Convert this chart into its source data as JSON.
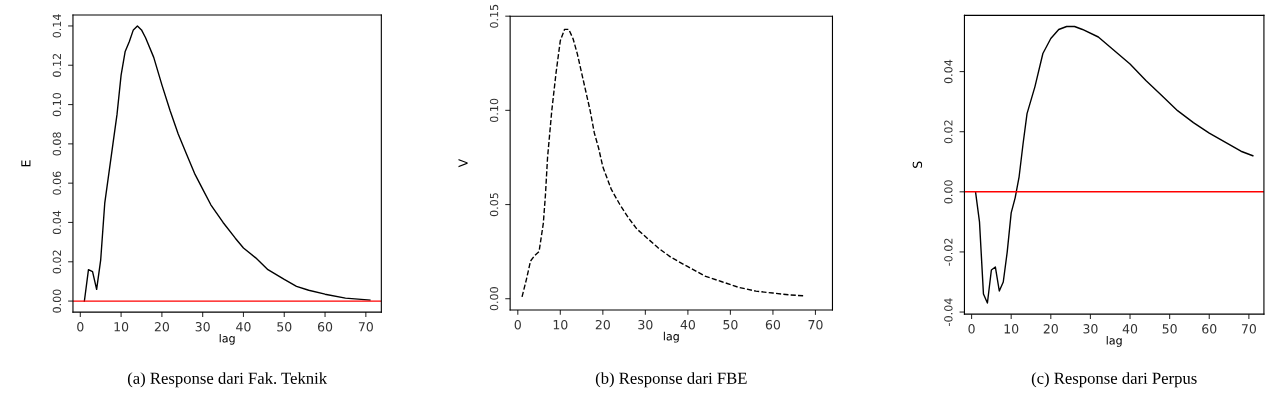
{
  "chart_data": [
    {
      "type": "line",
      "xlabel": "lag",
      "ylabel": "E",
      "xlim": [
        -1.8,
        73.8
      ],
      "ylim": [
        -0.0056,
        0.1456
      ],
      "xticks": [
        0,
        10,
        20,
        30,
        40,
        50,
        60,
        70
      ],
      "yticks": [
        {
          "value": 0,
          "label": "0.00"
        },
        {
          "value": 0.02,
          "label": "0.02"
        },
        {
          "value": 0.04,
          "label": "0.04"
        },
        {
          "value": 0.06,
          "label": "0.06"
        },
        {
          "value": 0.08,
          "label": "0.08"
        },
        {
          "value": 0.1,
          "label": "0.10"
        },
        {
          "value": 0.12,
          "label": "0.12"
        },
        {
          "value": 0.14,
          "label": "0.14"
        }
      ],
      "grid": false,
      "legend": false,
      "line_style": "solid",
      "ref_lines": [
        {
          "axis": "y",
          "value": 0,
          "color": "#ff0000"
        }
      ],
      "annotations": [
        "(a) Response dari Fak. Teknik"
      ],
      "series": [
        {
          "color": "#000000",
          "x": [
            1,
            2,
            3,
            4,
            5,
            6,
            7,
            8,
            9,
            10,
            11,
            12,
            13,
            14,
            15,
            16,
            18,
            20,
            22,
            24,
            26,
            28,
            30,
            32,
            35,
            38,
            40,
            43,
            46,
            50,
            53,
            56,
            60,
            65,
            71
          ],
          "values": [
            0,
            0.016,
            0.015,
            0.006,
            0.021,
            0.05,
            0.065,
            0.08,
            0.095,
            0.115,
            0.127,
            0.132,
            0.138,
            0.14,
            0.138,
            0.134,
            0.124,
            0.11,
            0.097,
            0.085,
            0.075,
            0.065,
            0.057,
            0.049,
            0.04,
            0.032,
            0.027,
            0.022,
            0.016,
            0.011,
            0.0075,
            0.0055,
            0.0035,
            0.0015,
            0.0005
          ]
        }
      ]
    },
    {
      "type": "line",
      "xlabel": "lag",
      "ylabel": "V",
      "xlim": [
        -1.8,
        74
      ],
      "ylim": [
        -0.006,
        0.15
      ],
      "xticks": [
        0,
        10,
        20,
        30,
        40,
        50,
        60,
        70
      ],
      "yticks": [
        {
          "value": 0,
          "label": "0.00"
        },
        {
          "value": 0.05,
          "label": "0.05"
        },
        {
          "value": 0.1,
          "label": "0.10"
        },
        {
          "value": 0.15,
          "label": "0.15"
        }
      ],
      "grid": false,
      "legend": false,
      "line_style": "dashed",
      "annotations": [
        "(b) Response dari FBE"
      ],
      "series": [
        {
          "color": "#000000",
          "x": [
            1,
            2,
            3,
            4,
            5,
            6,
            6.5,
            7,
            8,
            9,
            10,
            11,
            12,
            13,
            14,
            15,
            16,
            17,
            18,
            19,
            20,
            22,
            24,
            26,
            28,
            30,
            33,
            36,
            40,
            44,
            48,
            52,
            56,
            60,
            64,
            67.5
          ],
          "values": [
            0.001,
            0.01,
            0.02,
            0.023,
            0.025,
            0.04,
            0.055,
            0.075,
            0.1,
            0.12,
            0.137,
            0.143,
            0.143,
            0.138,
            0.13,
            0.12,
            0.11,
            0.1,
            0.088,
            0.08,
            0.07,
            0.058,
            0.05,
            0.043,
            0.037,
            0.033,
            0.027,
            0.022,
            0.017,
            0.012,
            0.009,
            0.006,
            0.004,
            0.003,
            0.002,
            0.0015
          ]
        }
      ]
    },
    {
      "type": "line",
      "xlabel": "lag",
      "ylabel": "S",
      "xlim": [
        -1.8,
        73.8
      ],
      "ylim": [
        -0.0407,
        0.0587
      ],
      "xticks": [
        0,
        10,
        20,
        30,
        40,
        50,
        60,
        70
      ],
      "yticks": [
        {
          "value": -0.04,
          "label": "-0.04"
        },
        {
          "value": -0.02,
          "label": "-0.02"
        },
        {
          "value": 0,
          "label": "0.00"
        },
        {
          "value": 0.02,
          "label": "0.02"
        },
        {
          "value": 0.04,
          "label": "0.04"
        }
      ],
      "grid": false,
      "legend": false,
      "line_style": "solid",
      "ref_lines": [
        {
          "axis": "y",
          "value": 0,
          "color": "#ff0000"
        }
      ],
      "annotations": [
        "(c) Response dari Perpus"
      ],
      "series": [
        {
          "color": "#000000",
          "x": [
            1,
            2,
            3,
            4,
            5,
            6,
            7,
            8,
            9,
            10,
            11,
            12,
            13,
            14,
            16,
            18,
            20,
            22,
            24,
            26,
            28,
            32,
            36,
            40,
            44,
            48,
            52,
            56,
            60,
            64,
            68,
            71
          ],
          "values": [
            0,
            -0.01,
            -0.034,
            -0.037,
            -0.026,
            -0.025,
            -0.033,
            -0.03,
            -0.02,
            -0.007,
            -0.002,
            0.005,
            0.016,
            0.026,
            0.035,
            0.046,
            0.051,
            0.054,
            0.055,
            0.055,
            0.054,
            0.0515,
            0.047,
            0.0425,
            0.037,
            0.032,
            0.027,
            0.023,
            0.0195,
            0.0165,
            0.0135,
            0.012
          ]
        }
      ]
    }
  ]
}
